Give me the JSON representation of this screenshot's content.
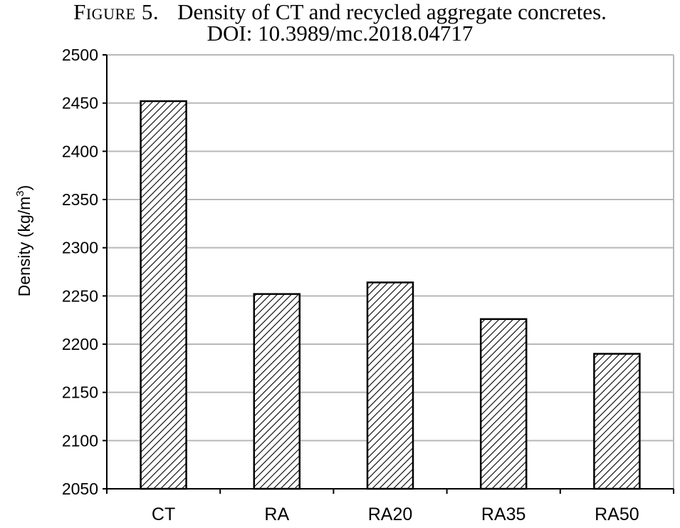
{
  "caption": {
    "label": "Figure 5.",
    "text": "Density of CT and recycled aggregate concretes.",
    "doi": "DOI: 10.3989/mc.2018.04717"
  },
  "chart_data": {
    "type": "bar",
    "categories": [
      "CT",
      "RA",
      "RA20",
      "RA35",
      "RA50"
    ],
    "values": [
      2452,
      2252,
      2264,
      2226,
      2190
    ],
    "ylabel": "Density (kg/m³)",
    "ylabel_base": "Density (kg/m",
    "ylabel_sup": "3",
    "ylabel_close": ")",
    "ylim": [
      2050,
      2500
    ],
    "yticks": [
      2050,
      2100,
      2150,
      2200,
      2250,
      2300,
      2350,
      2400,
      2450,
      2500
    ],
    "grid": true,
    "legend": "none",
    "fill_pattern": "diagonal-hatch",
    "colors": {
      "bar_stroke": "#000000",
      "hatch": "#000000",
      "grid": "#b8b8b8",
      "axis": "#000000"
    }
  }
}
